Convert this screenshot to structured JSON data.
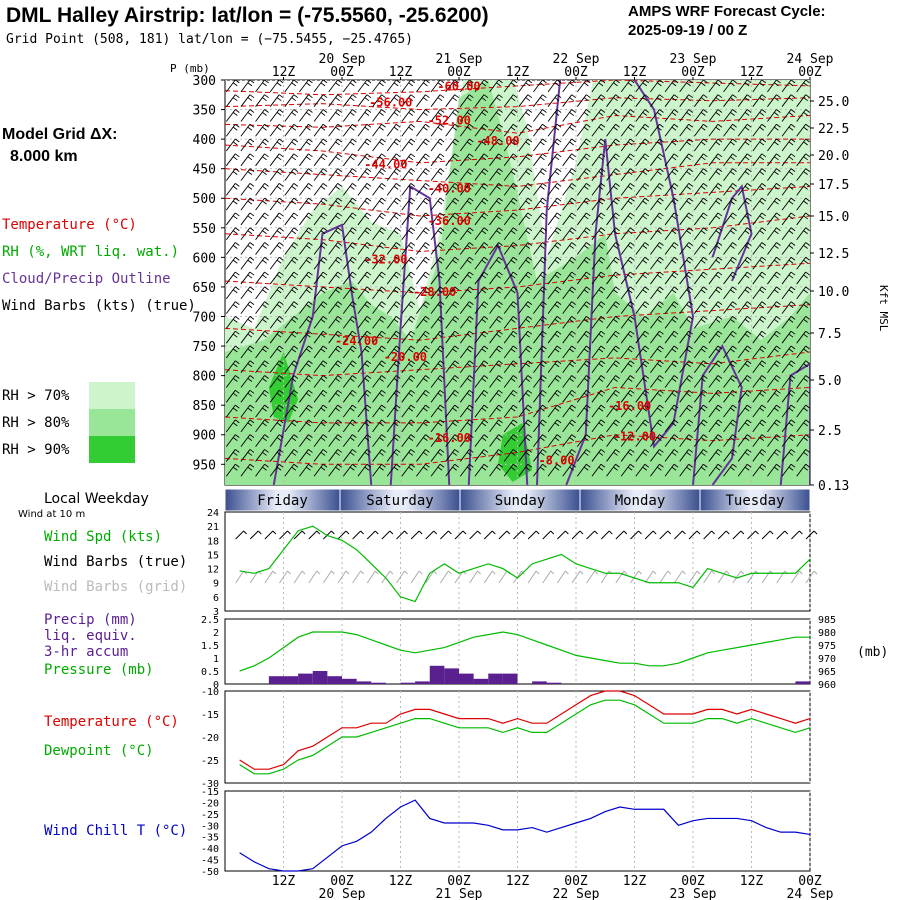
{
  "header": {
    "title": "DML Halley Airstrip:  lat/lon = (-75.5560, -25.6200)",
    "grid_point": "Grid Point (508, 181) lat/lon = (−75.5455, −25.4765)",
    "cycle_line1": "AMPS WRF Forecast Cycle:",
    "cycle_line2": "2025-09-19 / 00  Z"
  },
  "time_axis": {
    "top_hours": [
      "12Z",
      "00Z",
      "12Z",
      "00Z",
      "12Z",
      "00Z",
      "12Z",
      "00Z",
      "12Z",
      "00Z"
    ],
    "top_dates": [
      "20 Sep",
      "21 Sep",
      "22 Sep",
      "23 Sep",
      "24 Sep"
    ],
    "bottom_hours": [
      "12Z",
      "00Z",
      "12Z",
      "00Z",
      "12Z",
      "00Z",
      "12Z",
      "00Z",
      "12Z",
      "00Z"
    ],
    "bottom_dates": [
      "20 Sep",
      "21 Sep",
      "22 Sep",
      "23 Sep",
      "24 Sep"
    ]
  },
  "left_legend": {
    "p_label": "P (mb)",
    "model_grid_line1": "Model Grid ΔX:",
    "model_grid_line2": "8.000 km",
    "temperature": "Temperature (°C)",
    "rh": "RH (%, WRT liq. wat.)",
    "cloud": "Cloud/Precip Outline",
    "wind_barbs": "Wind Barbs (kts) (true)",
    "rh_bins": [
      "RH > 70%",
      "RH > 80%",
      "RH > 90%"
    ],
    "local_weekday": "Local Weekday",
    "wind_at": "Wind at 10 m",
    "wind_spd": "Wind Spd (kts)",
    "wind_barbs_true": "Wind Barbs (true)",
    "wind_barbs_grid": "Wind Barbs (grid)",
    "precip_1": "Precip (mm)",
    "precip_2": "liq. equiv.",
    "precip_3": "3-hr accum",
    "pressure": "Pressure (mb)",
    "temp2": "Temperature (°C)",
    "dewpoint": "Dewpoint (°C)",
    "wind_chill": "Wind Chill T (°C)"
  },
  "colors": {
    "temperature": "#dd0000",
    "dewpoint": "#00bb00",
    "cloud": "#663399",
    "precip": "#5b2090",
    "windchill": "#0000cc",
    "rh70": "#ccf5cc",
    "rh80": "#99e699",
    "rh90": "#33cc33",
    "grid_barb": "#aaaaaa",
    "weekday_bar": "#5a6fa8"
  },
  "weekdays": [
    "Friday",
    "Saturday",
    "Sunday",
    "Monday",
    "Tuesday"
  ],
  "chart_data": [
    {
      "type": "heatmap",
      "title": "Time-height cross section",
      "ylabel": "P (mb)",
      "y2label": "Kft MSL",
      "pressure_ticks": [
        300,
        350,
        400,
        450,
        500,
        550,
        600,
        650,
        700,
        750,
        800,
        850,
        900,
        950
      ],
      "height_ticks": [
        "25.0",
        "22.5",
        "20.0",
        "17.5",
        "15.0",
        "12.5",
        "10.0",
        "7.5",
        "5.0",
        "2.5",
        "0.13"
      ],
      "temperature_contour_labels": [
        "-60.00",
        "-56.00",
        "-52.00",
        "-48.00",
        "-44.00",
        "-40.00",
        "-36.00",
        "-32.00",
        "-28.00",
        "-24.00",
        "-20.00",
        "-16.00",
        "-16.00",
        "-12.00",
        "-8.00"
      ]
    },
    {
      "type": "line",
      "title": "10 m wind speed",
      "ylabel": "Wind Spd (kts)",
      "y_ticks": [
        24,
        21,
        18,
        15,
        12,
        9,
        6,
        3
      ],
      "ylim": [
        3,
        24
      ],
      "x_hours": [
        3,
        6,
        9,
        12,
        15,
        18,
        21,
        24,
        27,
        30,
        33,
        36,
        39,
        42,
        45,
        48,
        51,
        54,
        57,
        60,
        63,
        66,
        69,
        72,
        75,
        78,
        81,
        84,
        87,
        90,
        93,
        96,
        99,
        102,
        105,
        108,
        111,
        114,
        117,
        120
      ],
      "series": [
        {
          "name": "Wind Spd",
          "values": [
            11.5,
            11,
            12,
            16,
            20,
            21,
            19,
            18,
            16,
            13,
            10,
            6,
            5,
            11,
            13,
            11,
            12,
            13,
            12,
            10,
            13,
            14,
            15,
            13,
            12,
            11,
            11,
            10,
            9,
            9,
            9,
            8,
            12,
            11,
            10,
            11,
            11,
            11,
            11,
            14
          ]
        }
      ]
    },
    {
      "type": "bar",
      "title": "Precip and pressure",
      "ylabel": "Precip (mm)",
      "y_ticks": [
        "2.5",
        "2",
        "1.5",
        "1",
        "0.5",
        "0"
      ],
      "ylim": [
        0,
        2.5
      ],
      "y2_ticks": [
        985,
        980,
        975,
        970,
        965,
        960
      ],
      "y2lim": [
        960,
        985
      ],
      "x_hours": [
        3,
        6,
        9,
        12,
        15,
        18,
        21,
        24,
        27,
        30,
        33,
        36,
        39,
        42,
        45,
        48,
        51,
        54,
        57,
        60,
        63,
        66,
        69,
        72,
        75,
        78,
        81,
        84,
        87,
        90,
        93,
        96,
        99,
        102,
        105,
        108,
        111,
        114,
        117,
        120
      ],
      "series": [
        {
          "name": "Precip",
          "values": [
            0,
            0,
            0,
            0.3,
            0.3,
            0.4,
            0.5,
            0.3,
            0.2,
            0.1,
            0.05,
            0,
            0.05,
            0.1,
            0.7,
            0.6,
            0.4,
            0.2,
            0.4,
            0.4,
            0,
            0.1,
            0.05,
            0,
            0,
            0,
            0,
            0,
            0,
            0,
            0,
            0,
            0,
            0,
            0,
            0,
            0,
            0,
            0,
            0.1
          ]
        },
        {
          "name": "Pressure",
          "values": [
            965,
            967,
            970,
            974,
            978,
            980,
            980,
            980,
            979,
            977,
            975,
            973,
            972,
            973,
            974,
            976,
            978,
            979,
            980,
            979,
            977,
            975,
            973,
            971,
            970,
            969,
            968,
            968,
            967,
            967,
            968,
            970,
            972,
            973,
            974,
            975,
            976,
            977,
            978,
            978
          ]
        }
      ]
    },
    {
      "type": "line",
      "title": "Temperature and dewpoint",
      "ylabel": "Temperature (°C)",
      "y_ticks": [
        -10,
        -15,
        -20,
        -25,
        -30
      ],
      "ylim": [
        -30,
        -10
      ],
      "x_hours": [
        3,
        6,
        9,
        12,
        15,
        18,
        21,
        24,
        27,
        30,
        33,
        36,
        39,
        42,
        45,
        48,
        51,
        54,
        57,
        60,
        63,
        66,
        69,
        72,
        75,
        78,
        81,
        84,
        87,
        90,
        93,
        96,
        99,
        102,
        105,
        108,
        111,
        114,
        117,
        120
      ],
      "series": [
        {
          "name": "Temperature",
          "values": [
            -25,
            -27,
            -27,
            -26,
            -23,
            -22,
            -20,
            -18,
            -18,
            -17,
            -17,
            -15,
            -14,
            -14,
            -15,
            -16,
            -16,
            -16,
            -17,
            -16,
            -17,
            -17,
            -15,
            -13,
            -11,
            -10,
            -10,
            -11,
            -13,
            -15,
            -15,
            -15,
            -14,
            -14,
            -15,
            -14,
            -15,
            -16,
            -17,
            -16
          ]
        },
        {
          "name": "Dewpoint",
          "values": [
            -26,
            -28,
            -28,
            -27,
            -25,
            -24,
            -22,
            -20,
            -20,
            -19,
            -18,
            -17,
            -16,
            -16,
            -17,
            -18,
            -18,
            -18,
            -19,
            -18,
            -19,
            -19,
            -17,
            -15,
            -13,
            -12,
            -12,
            -13,
            -15,
            -17,
            -17,
            -17,
            -16,
            -16,
            -17,
            -16,
            -17,
            -18,
            -19,
            -18
          ]
        }
      ]
    },
    {
      "type": "line",
      "title": "Wind chill",
      "ylabel": "Wind Chill T (°C)",
      "y_ticks": [
        -15,
        -20,
        -25,
        -30,
        -35,
        -40,
        -45,
        -50
      ],
      "ylim": [
        -50,
        -15
      ],
      "x_hours": [
        3,
        6,
        9,
        12,
        15,
        18,
        21,
        24,
        27,
        30,
        33,
        36,
        39,
        42,
        45,
        48,
        51,
        54,
        57,
        60,
        63,
        66,
        69,
        72,
        75,
        78,
        81,
        84,
        87,
        90,
        93,
        96,
        99,
        102,
        105,
        108,
        111,
        114,
        117,
        120
      ],
      "series": [
        {
          "name": "Wind Chill T",
          "values": [
            -42,
            -46,
            -49,
            -50,
            -50,
            -49,
            -44,
            -39,
            -37,
            -33,
            -27,
            -22,
            -19,
            -27,
            -29,
            -29,
            -29,
            -30,
            -32,
            -32,
            -31,
            -33,
            -31,
            -29,
            -27,
            -24,
            -22,
            -23,
            -23,
            -23,
            -30,
            -28,
            -27,
            -27,
            -27,
            -28,
            -31,
            -33,
            -33,
            -34
          ]
        }
      ]
    }
  ]
}
